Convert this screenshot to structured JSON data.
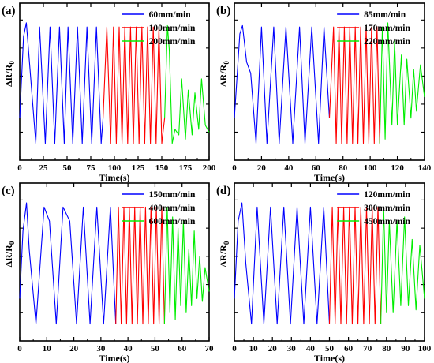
{
  "chart_data": [
    {
      "type": "line",
      "panel_label": "(a)",
      "xlabel": "Time(s)",
      "ylabel": "ΔR/R",
      "ylabel_sub": "0",
      "xlim": [
        0,
        200
      ],
      "xticks": [
        0,
        25,
        50,
        75,
        100,
        125,
        150,
        175,
        200
      ],
      "yticks": "unlabeled",
      "legend": "top-right",
      "grid": false,
      "series": [
        {
          "name": "60mm/min",
          "color": "#0000ff",
          "x": [
            0,
            4,
            7,
            12,
            17,
            21,
            27,
            32,
            37,
            42,
            47,
            51,
            56,
            61,
            66,
            71,
            76,
            81,
            86,
            88
          ],
          "y": [
            0.3,
            0.88,
            0.98,
            0.55,
            0.12,
            0.95,
            0.12,
            0.95,
            0.12,
            0.95,
            0.12,
            0.95,
            0.12,
            0.95,
            0.12,
            0.95,
            0.12,
            0.95,
            0.12,
            0.3
          ]
        },
        {
          "name": "100mm/min",
          "color": "#ff0000",
          "x": [
            88,
            92,
            96,
            99,
            102,
            105,
            108,
            111,
            114,
            117,
            120,
            123,
            126,
            129,
            132,
            135,
            138,
            141,
            144,
            147,
            150,
            153
          ],
          "y": [
            0.3,
            0.95,
            0.12,
            0.95,
            0.12,
            0.95,
            0.12,
            0.95,
            0.12,
            0.95,
            0.12,
            0.95,
            0.12,
            0.95,
            0.12,
            0.95,
            0.12,
            0.95,
            0.12,
            0.95,
            0.12,
            0.3
          ]
        },
        {
          "name": "200mm/min",
          "color": "#00ee00",
          "x": [
            153,
            156,
            158,
            161,
            164,
            168,
            171,
            175,
            178,
            182,
            185,
            189,
            192,
            196,
            200
          ],
          "y": [
            0.3,
            0.96,
            0.78,
            0.12,
            0.22,
            0.18,
            0.58,
            0.15,
            0.5,
            0.18,
            0.48,
            0.22,
            0.58,
            0.25,
            0.2
          ]
        }
      ]
    },
    {
      "type": "line",
      "panel_label": "(b)",
      "xlabel": "Time(s)",
      "ylabel": "ΔR/R",
      "ylabel_sub": "0",
      "xlim": [
        0,
        140
      ],
      "xticks": [
        0,
        20,
        40,
        60,
        80,
        100,
        120,
        140
      ],
      "yticks": "unlabeled",
      "legend": "top-right",
      "grid": false,
      "series": [
        {
          "name": "85mm/min",
          "color": "#0000ff",
          "x": [
            0,
            4,
            6,
            9,
            12,
            16,
            20,
            24,
            29,
            33,
            38,
            43,
            48,
            52,
            57,
            62,
            66,
            70
          ],
          "y": [
            0.3,
            0.9,
            0.96,
            0.7,
            0.62,
            0.12,
            0.95,
            0.12,
            0.95,
            0.12,
            0.95,
            0.12,
            0.95,
            0.12,
            0.95,
            0.12,
            0.95,
            0.3
          ]
        },
        {
          "name": "170mm/min",
          "color": "#ff0000",
          "x": [
            70,
            73,
            75,
            77,
            79,
            81,
            83,
            85,
            87,
            89,
            91,
            93,
            95,
            97,
            99,
            101,
            103,
            105,
            107
          ],
          "y": [
            0.3,
            0.95,
            0.12,
            0.95,
            0.12,
            0.95,
            0.12,
            0.95,
            0.12,
            0.95,
            0.12,
            0.95,
            0.12,
            0.95,
            0.12,
            0.95,
            0.12,
            0.95,
            0.12
          ]
        },
        {
          "name": "220mm/min",
          "color": "#00ee00",
          "x": [
            107,
            109,
            111,
            113,
            116,
            118,
            120,
            123,
            125,
            127,
            130,
            132,
            134,
            137,
            140
          ],
          "y": [
            0.12,
            0.95,
            0.15,
            0.98,
            0.25,
            0.85,
            0.25,
            0.75,
            0.25,
            0.72,
            0.3,
            0.65,
            0.35,
            0.68,
            0.45
          ]
        }
      ]
    },
    {
      "type": "line",
      "panel_label": "(c)",
      "xlabel": "Time(s)",
      "ylabel": "ΔR/R",
      "ylabel_sub": "0",
      "xlim": [
        0,
        70
      ],
      "xticks": [
        0,
        10,
        20,
        30,
        40,
        50,
        60,
        70
      ],
      "yticks": "unlabeled",
      "legend": "top-right",
      "grid": false,
      "series": [
        {
          "name": "150mm/min",
          "color": "#0000ff",
          "x": [
            0,
            1.2,
            2.5,
            3.5,
            6,
            9,
            11,
            13.5,
            16,
            18.5,
            21,
            23.5,
            26,
            28.5,
            31,
            33.5,
            35.5
          ],
          "y": [
            0.3,
            0.78,
            0.98,
            0.65,
            0.12,
            0.95,
            0.85,
            0.12,
            0.95,
            0.85,
            0.12,
            0.95,
            0.12,
            0.95,
            0.12,
            0.95,
            0.12
          ]
        },
        {
          "name": "400mm/min",
          "color": "#ff0000",
          "x": [
            35.5,
            36.5,
            37.5,
            38.5,
            39.5,
            40.5,
            41.5,
            42.5,
            43.5,
            44.5,
            45.5,
            46.5,
            47.5,
            48.5,
            49.5,
            50.5,
            51.5,
            52.5,
            53.5
          ],
          "y": [
            0.12,
            0.95,
            0.12,
            0.95,
            0.12,
            0.95,
            0.12,
            0.95,
            0.12,
            0.95,
            0.12,
            0.95,
            0.12,
            0.95,
            0.12,
            0.95,
            0.12,
            0.95,
            0.12
          ]
        },
        {
          "name": "600mm/min",
          "color": "#00ee00",
          "x": [
            53.5,
            54.5,
            55.5,
            56.5,
            57.5,
            58.5,
            59.5,
            60.5,
            61.5,
            62.5,
            63.5,
            64.5,
            65.5,
            66.5,
            67.5,
            68.5,
            70
          ],
          "y": [
            0.12,
            0.95,
            0.2,
            0.88,
            0.15,
            0.8,
            0.25,
            0.85,
            0.2,
            0.65,
            0.25,
            0.78,
            0.3,
            0.6,
            0.28,
            0.52,
            0.35
          ]
        }
      ]
    },
    {
      "type": "line",
      "panel_label": "(d)",
      "xlabel": "Time(s)",
      "ylabel": "ΔR/R",
      "ylabel_sub": "0",
      "xlim": [
        0,
        100
      ],
      "xticks": [
        0,
        10,
        20,
        30,
        40,
        50,
        60,
        70,
        80,
        90,
        100
      ],
      "yticks": "unlabeled",
      "legend": "top-right",
      "grid": false,
      "series": [
        {
          "name": "120mm/min",
          "color": "#0000ff",
          "x": [
            0,
            2,
            4,
            6,
            9,
            12,
            15.5,
            19,
            22.5,
            26,
            29.5,
            33,
            36.5,
            40,
            43.5,
            47,
            50
          ],
          "y": [
            0.3,
            0.85,
            0.98,
            0.55,
            0.12,
            0.95,
            0.12,
            0.95,
            0.12,
            0.95,
            0.12,
            0.95,
            0.12,
            0.95,
            0.12,
            0.95,
            0.12
          ]
        },
        {
          "name": "300mm/min",
          "color": "#ff0000",
          "x": [
            50,
            51.5,
            53,
            54.5,
            56,
            57.5,
            59,
            60.5,
            62,
            63.5,
            65,
            66.5,
            68,
            69.5,
            71,
            72.5,
            74,
            75.5,
            77
          ],
          "y": [
            0.12,
            0.95,
            0.12,
            0.95,
            0.12,
            0.95,
            0.12,
            0.95,
            0.12,
            0.95,
            0.12,
            0.95,
            0.12,
            0.95,
            0.12,
            0.95,
            0.12,
            0.95,
            0.12
          ]
        },
        {
          "name": "450mm/min",
          "color": "#00ee00",
          "x": [
            77,
            78.5,
            80,
            81.5,
            83.5,
            85.5,
            87.5,
            89.5,
            91.5,
            93.5,
            95.5,
            97.5,
            100
          ],
          "y": [
            0.12,
            0.95,
            0.2,
            0.85,
            0.2,
            0.85,
            0.25,
            0.88,
            0.25,
            0.72,
            0.22,
            0.68,
            0.3
          ]
        }
      ]
    }
  ]
}
